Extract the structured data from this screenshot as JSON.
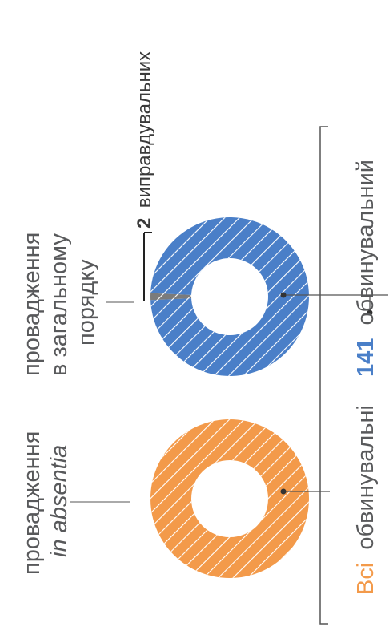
{
  "chart_data": [
    {
      "type": "pie",
      "categories": [
        "обвинувальні"
      ],
      "values": [
        100
      ],
      "colors": [
        "#f39a4a"
      ],
      "style": "donut, diagonal hatching",
      "label": {
        "line1": "провадження",
        "line2": "in absentia"
      },
      "legend": {
        "prefix": "Всі",
        "text": "обвинувальні",
        "prefix_color": "#f39a4a"
      }
    },
    {
      "type": "pie",
      "categories": [
        "обвинувальний",
        "виправдувальних"
      ],
      "values": [
        141,
        2
      ],
      "colors": [
        "#4a7fc8",
        "#7b7b7b"
      ],
      "style": "donut, diagonal hatching",
      "label": {
        "line1": "провадження",
        "line2": "в загальному",
        "line3": "порядку"
      },
      "callout": {
        "value": "2",
        "text": "виправдувальних"
      },
      "legend": {
        "value": "141",
        "text": "обвинувальний",
        "value_color": "#4a7fc8"
      }
    }
  ]
}
